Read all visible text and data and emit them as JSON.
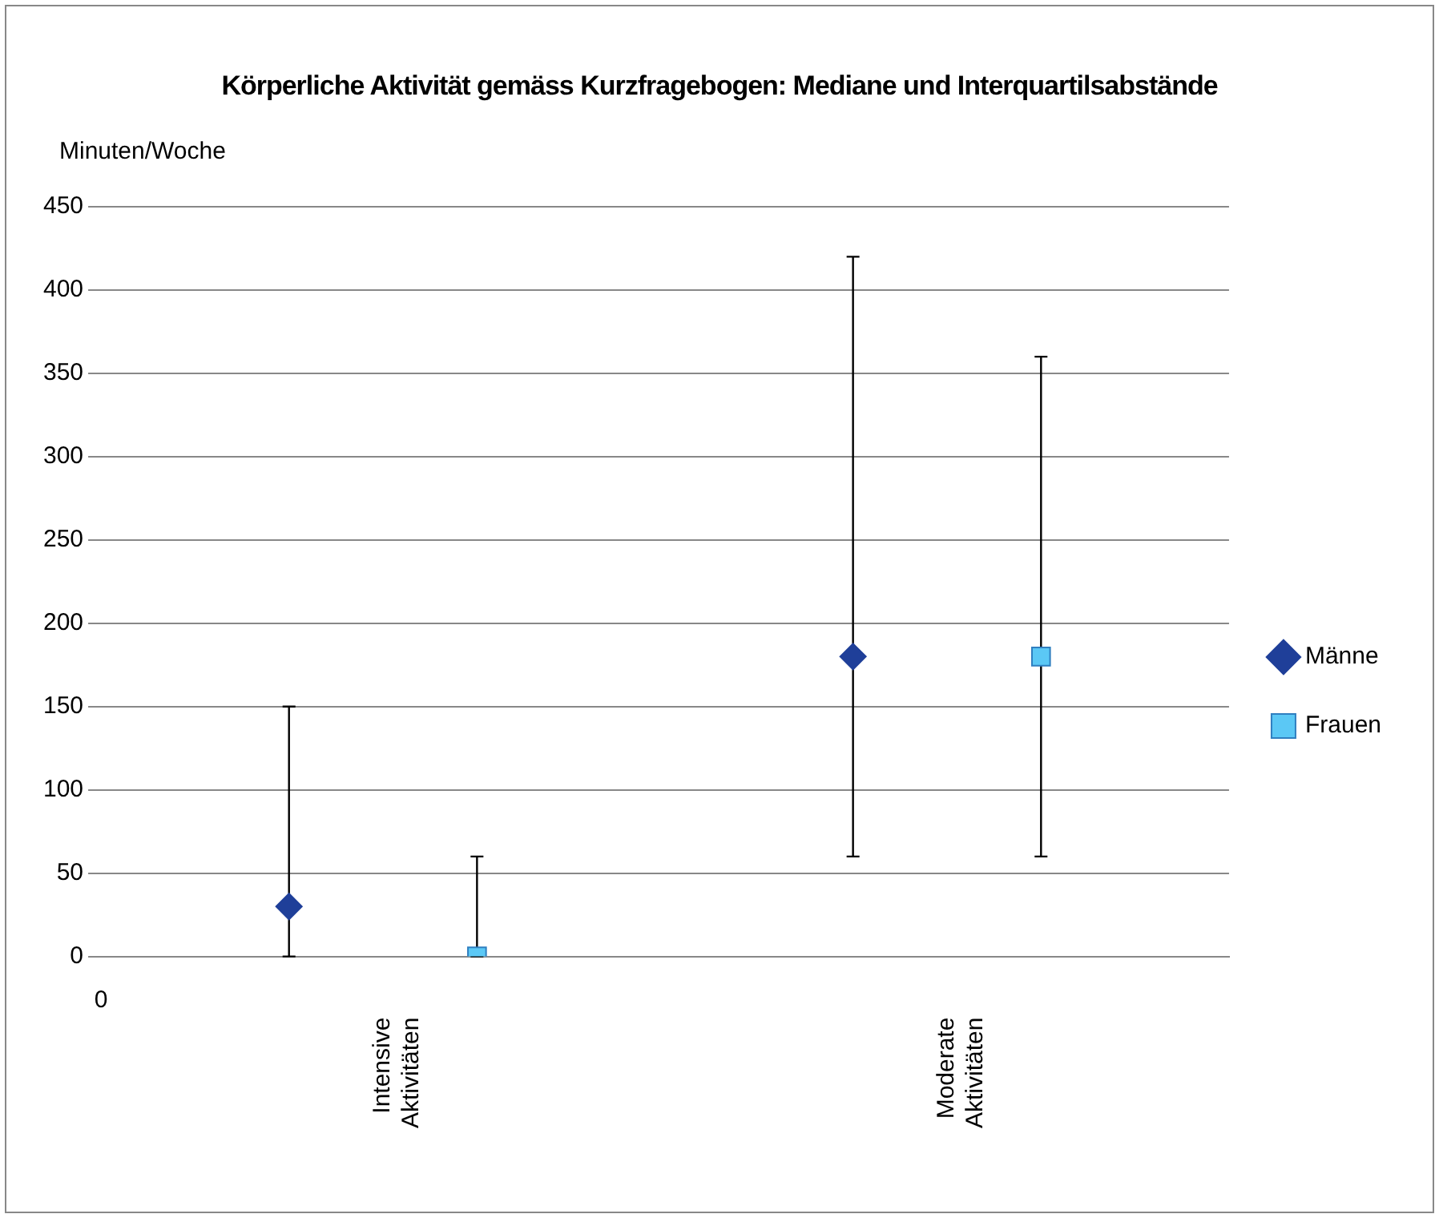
{
  "chart_data": {
    "type": "scatter",
    "title": "Körperliche Aktivität gemäss Kurzfragebogen:  Mediane und Interquartilsabstände",
    "ylabel": "Minuten/Woche",
    "categories": [
      "Intensive Aktivitäten",
      "Moderate Aktivitäten"
    ],
    "series": [
      {
        "name": "Männe",
        "color": "#1f3f99",
        "marker": "diamond",
        "values": [
          30,
          180
        ],
        "errors": [
          [
            0,
            150
          ],
          [
            60,
            420
          ]
        ]
      },
      {
        "name": "Frauen",
        "color": "#5bc8f5",
        "marker": "square",
        "values": [
          0,
          180
        ],
        "errors": [
          [
            0,
            60
          ],
          [
            60,
            360
          ]
        ]
      }
    ],
    "annotations": [
      "0"
    ],
    "ylim": [
      0,
      450
    ],
    "yticks": [
      0,
      50,
      100,
      150,
      200,
      250,
      300,
      350,
      400,
      450
    ],
    "grid": "y",
    "legend": "right"
  }
}
